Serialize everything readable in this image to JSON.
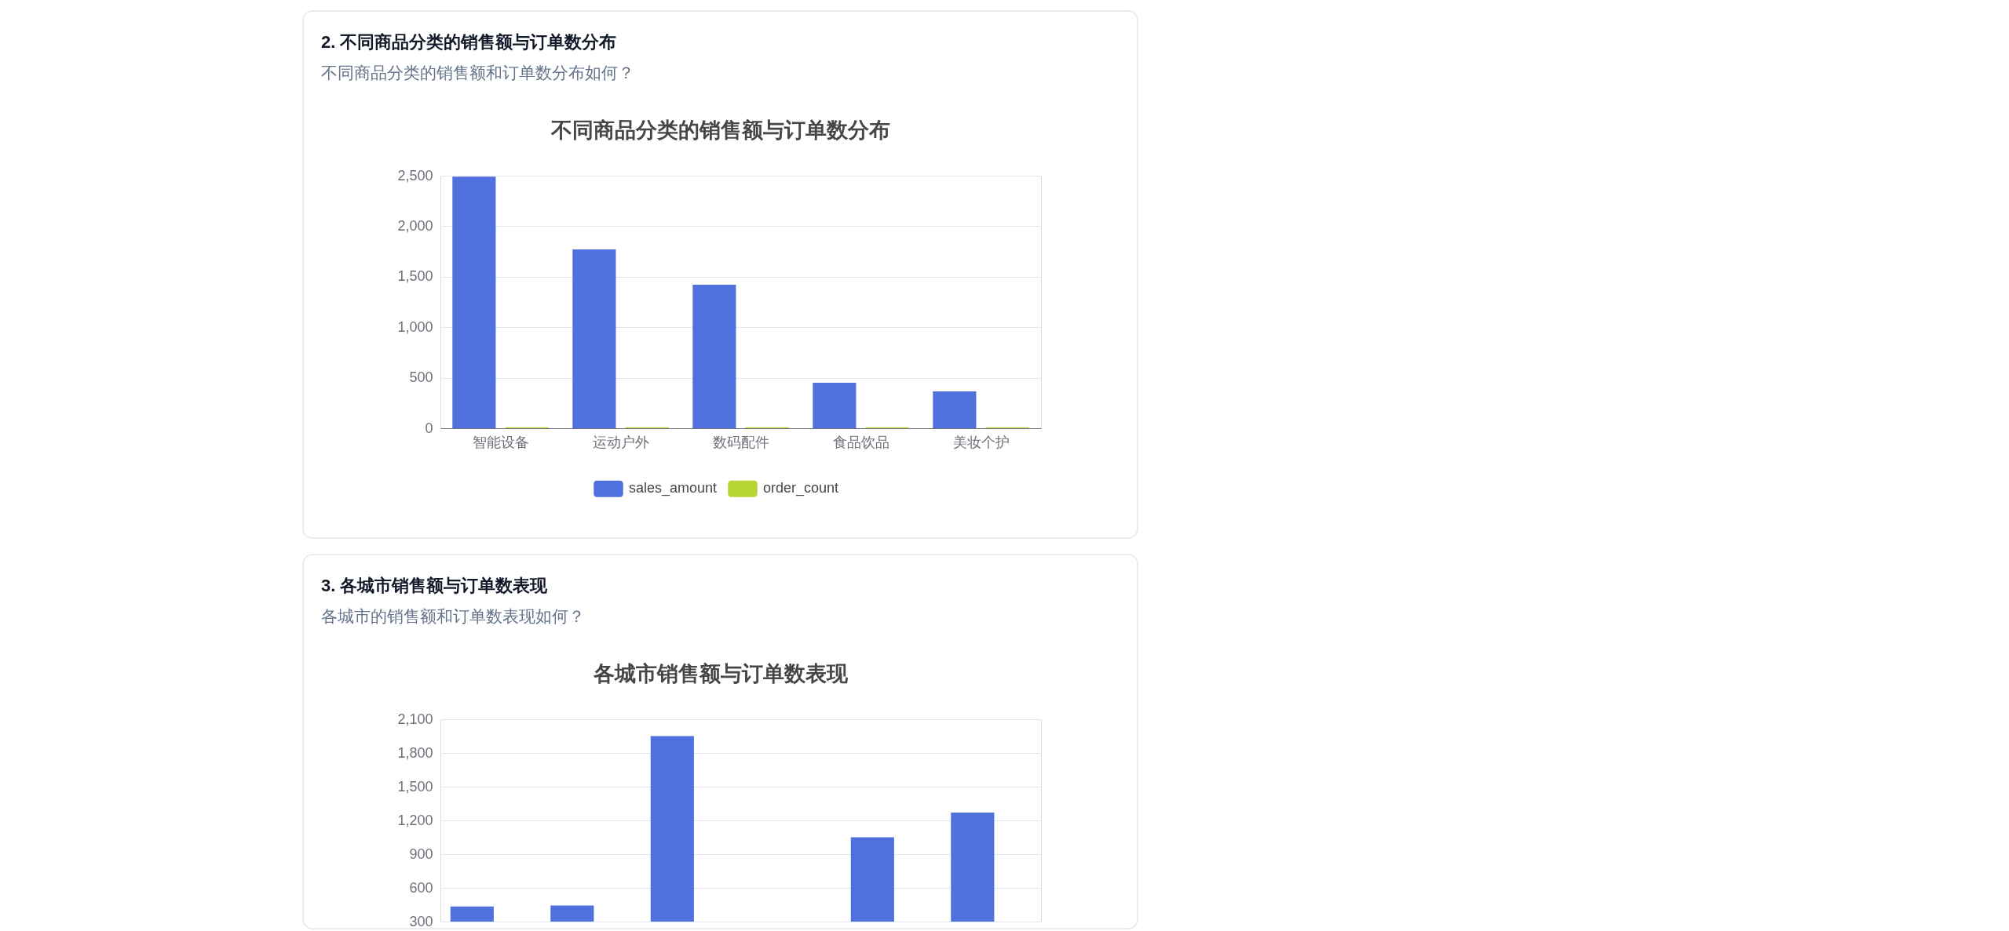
{
  "chart_data": [
    {
      "type": "bar",
      "title": "不同商品分类的销售额与订单数分布",
      "annotations": [
        "2. 不同商品分类的销售额与订单数分布",
        "不同商品分类的销售额和订单数分布如何？"
      ],
      "categories": [
        "智能设备",
        "运动户外",
        "数码配件",
        "食品饮品",
        "美妆个护"
      ],
      "series": [
        {
          "name": "sales_amount",
          "color": "#5070dd",
          "values": [
            2490,
            1770,
            1420,
            450,
            365
          ]
        },
        {
          "name": "order_count",
          "color": "#b6d634",
          "values": [
            10,
            10,
            10,
            10,
            10
          ]
        }
      ],
      "ylim": [
        0,
        2500
      ],
      "yticks": [
        0,
        500,
        {
          "value": 1000,
          "label": "1,000"
        },
        {
          "value": 1500,
          "label": "1,500"
        },
        {
          "value": 2000,
          "label": "2,000"
        },
        {
          "value": 2500,
          "label": "2,500"
        }
      ],
      "grid": "y",
      "legend": "bottom"
    },
    {
      "type": "bar",
      "title": "各城市销售额与订单数表现",
      "annotations": [
        "3. 各城市销售额与订单数表现",
        "各城市的销售额和订单数表现如何？"
      ],
      "categories": [
        null,
        null,
        null,
        null,
        null,
        null
      ],
      "series": [
        {
          "color": "#5070dd",
          "values": [
            435,
            443,
            1950,
            null,
            1050,
            1270
          ]
        },
        {
          "color": "#b6d634",
          "values": [
            null,
            null,
            null,
            null,
            null,
            null
          ]
        }
      ],
      "ylim": [
        300,
        2100
      ],
      "yticks": [
        300,
        600,
        900,
        {
          "value": 1200,
          "label": "1,200"
        },
        {
          "value": 1500,
          "label": "1,500"
        },
        {
          "value": 1800,
          "label": "1,800"
        },
        {
          "value": 2100,
          "label": "2,100"
        }
      ],
      "grid": "y",
      "tick_labels": "y"
    }
  ]
}
